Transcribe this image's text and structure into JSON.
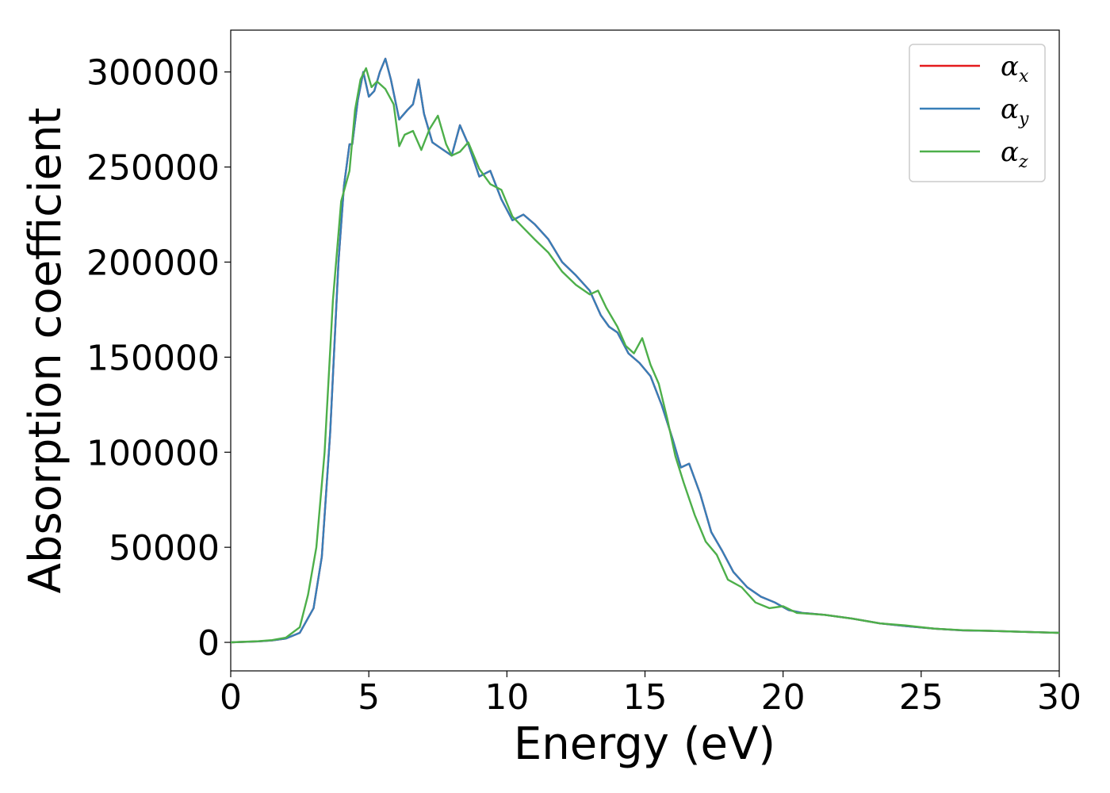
{
  "chart_data": {
    "type": "line",
    "title": "",
    "xlabel": "Energy (eV)",
    "ylabel": "Absorption coefficient",
    "xlim": [
      0,
      30
    ],
    "ylim": [
      -15000,
      322000
    ],
    "xticks": [
      0,
      5,
      10,
      15,
      20,
      25,
      30
    ],
    "yticks": [
      0,
      50000,
      100000,
      150000,
      200000,
      250000,
      300000
    ],
    "xtick_labels": [
      "0",
      "5",
      "10",
      "15",
      "20",
      "25",
      "30"
    ],
    "ytick_labels": [
      "0",
      "50000",
      "100000",
      "150000",
      "200000",
      "250000",
      "300000"
    ],
    "grid": false,
    "legend_position": "top-right",
    "series": [
      {
        "name": "α",
        "subscript": "x",
        "color": "#e41a1c",
        "x": [
          0,
          1,
          1.5,
          2,
          2.5,
          3,
          3.3,
          3.6,
          3.9,
          4.1,
          4.3,
          4.4,
          4.6,
          4.8,
          5.0,
          5.2,
          5.4,
          5.6,
          5.8,
          6.1,
          6.4,
          6.6,
          6.8,
          7.0,
          7.3,
          7.6,
          8.0,
          8.3,
          8.6,
          9.0,
          9.4,
          9.8,
          10.2,
          10.6,
          11.0,
          11.5,
          12.0,
          12.5,
          13.0,
          13.4,
          13.7,
          14.0,
          14.4,
          14.8,
          15.2,
          15.6,
          16.0,
          16.3,
          16.6,
          17.0,
          17.4,
          17.8,
          18.2,
          18.7,
          19.2,
          19.7,
          20.2,
          20.7,
          21.5,
          22.5,
          23.5,
          24.5,
          25.5,
          26.5,
          27.5,
          28.5,
          29.5,
          30
        ],
        "values": [
          0,
          500,
          1000,
          2000,
          5000,
          18000,
          45000,
          110000,
          200000,
          240000,
          262000,
          262000,
          285000,
          300000,
          287000,
          290000,
          300000,
          307000,
          296000,
          275000,
          280000,
          283000,
          296000,
          278000,
          263000,
          260000,
          256000,
          272000,
          262000,
          245000,
          248000,
          233000,
          222000,
          225000,
          220000,
          212000,
          200000,
          193000,
          185000,
          172000,
          166000,
          163000,
          152000,
          147000,
          140000,
          125000,
          107000,
          92000,
          94000,
          78000,
          58000,
          48000,
          37000,
          29000,
          24000,
          21000,
          17000,
          15500,
          14500,
          12500,
          10000,
          8500,
          7200,
          6300,
          6000,
          5600,
          5200,
          5000
        ]
      },
      {
        "name": "α",
        "subscript": "y",
        "color": "#377eb8",
        "x": [
          0,
          1,
          1.5,
          2,
          2.5,
          3,
          3.3,
          3.6,
          3.9,
          4.1,
          4.3,
          4.4,
          4.6,
          4.8,
          5.0,
          5.2,
          5.4,
          5.6,
          5.8,
          6.1,
          6.4,
          6.6,
          6.8,
          7.0,
          7.3,
          7.6,
          8.0,
          8.3,
          8.6,
          9.0,
          9.4,
          9.8,
          10.2,
          10.6,
          11.0,
          11.5,
          12.0,
          12.5,
          13.0,
          13.4,
          13.7,
          14.0,
          14.4,
          14.8,
          15.2,
          15.6,
          16.0,
          16.3,
          16.6,
          17.0,
          17.4,
          17.8,
          18.2,
          18.7,
          19.2,
          19.7,
          20.2,
          20.7,
          21.5,
          22.5,
          23.5,
          24.5,
          25.5,
          26.5,
          27.5,
          28.5,
          29.5,
          30
        ],
        "values": [
          0,
          500,
          1000,
          2000,
          5000,
          18000,
          45000,
          110000,
          200000,
          240000,
          262000,
          262000,
          285000,
          300000,
          287000,
          290000,
          300000,
          307000,
          296000,
          275000,
          280000,
          283000,
          296000,
          278000,
          263000,
          260000,
          256000,
          272000,
          262000,
          245000,
          248000,
          233000,
          222000,
          225000,
          220000,
          212000,
          200000,
          193000,
          185000,
          172000,
          166000,
          163000,
          152000,
          147000,
          140000,
          125000,
          107000,
          92000,
          94000,
          78000,
          58000,
          48000,
          37000,
          29000,
          24000,
          21000,
          17000,
          15500,
          14500,
          12500,
          10000,
          8500,
          7200,
          6300,
          6000,
          5600,
          5200,
          5000
        ]
      },
      {
        "name": "α",
        "subscript": "z",
        "color": "#4daf4a",
        "x": [
          0,
          1,
          1.5,
          2,
          2.5,
          2.8,
          3.1,
          3.4,
          3.7,
          4.0,
          4.3,
          4.5,
          4.7,
          4.9,
          5.1,
          5.3,
          5.6,
          5.9,
          6.1,
          6.3,
          6.6,
          6.9,
          7.2,
          7.5,
          7.8,
          8.0,
          8.3,
          8.6,
          9.0,
          9.4,
          9.8,
          10.2,
          10.6,
          11.0,
          11.5,
          12.0,
          12.5,
          13.0,
          13.3,
          13.6,
          14.0,
          14.3,
          14.6,
          14.9,
          15.2,
          15.5,
          15.8,
          16.1,
          16.4,
          16.8,
          17.2,
          17.6,
          18.0,
          18.5,
          19.0,
          19.5,
          20.0,
          20.5,
          21.5,
          22.5,
          23.5,
          24.5,
          25.5,
          26.5,
          27.5,
          28.5,
          29.5,
          30
        ],
        "values": [
          0,
          600,
          1200,
          2500,
          8000,
          25000,
          50000,
          100000,
          180000,
          232000,
          248000,
          280000,
          296000,
          302000,
          292000,
          295000,
          291000,
          283000,
          261000,
          267000,
          269000,
          259000,
          270000,
          277000,
          262000,
          256000,
          258000,
          263000,
          249000,
          241000,
          238000,
          224000,
          218000,
          212000,
          205000,
          195000,
          188000,
          183000,
          185000,
          176000,
          166000,
          156000,
          152000,
          160000,
          146000,
          136000,
          118000,
          98000,
          84000,
          67000,
          53000,
          46000,
          33000,
          29000,
          21000,
          18000,
          19000,
          15500,
          14500,
          12500,
          10000,
          8800,
          7200,
          6400,
          6100,
          5600,
          5200,
          5000
        ]
      }
    ]
  }
}
